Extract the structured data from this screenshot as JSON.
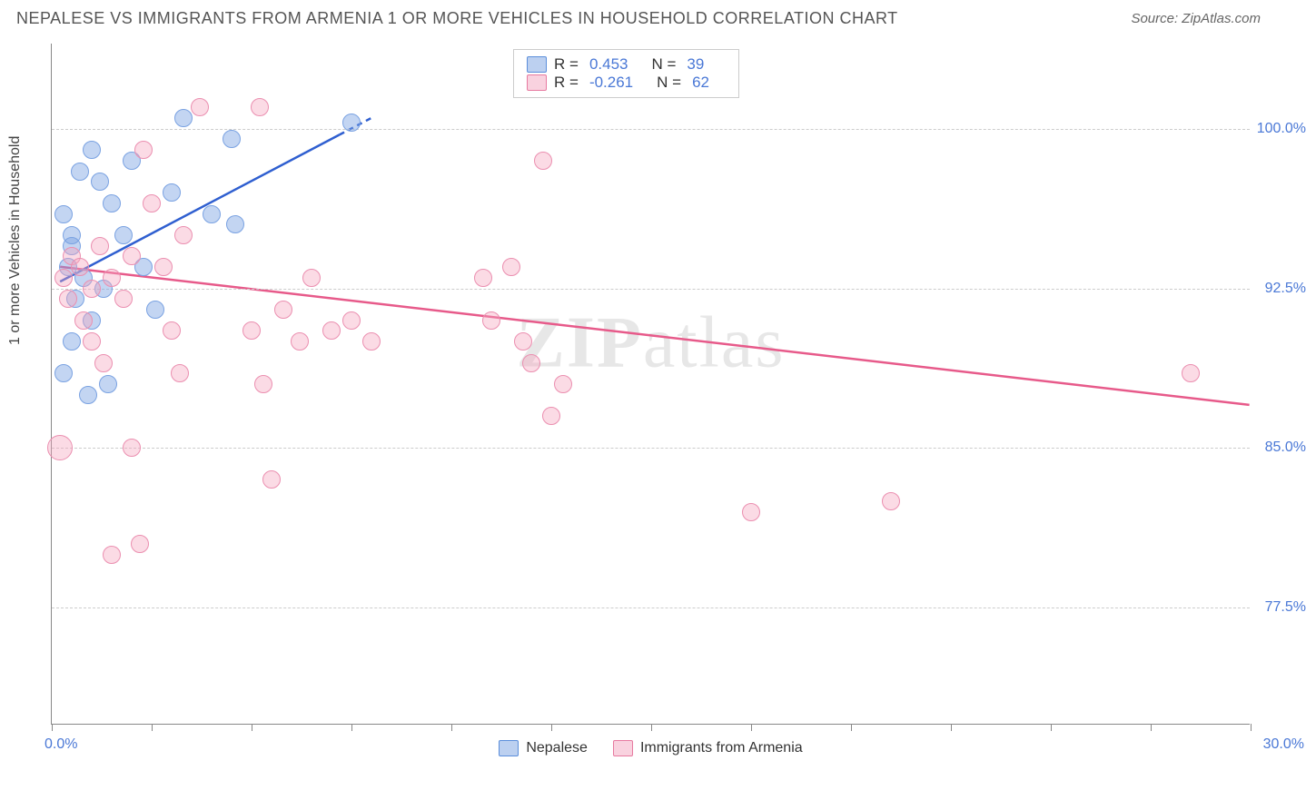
{
  "title": "NEPALESE VS IMMIGRANTS FROM ARMENIA 1 OR MORE VEHICLES IN HOUSEHOLD CORRELATION CHART",
  "source": "Source: ZipAtlas.com",
  "watermark_bold": "ZIP",
  "watermark_light": "atlas",
  "ylabel": "1 or more Vehicles in Household",
  "chart": {
    "type": "scatter",
    "xlim": [
      0,
      30
    ],
    "ylim": [
      72,
      104
    ],
    "y_gridlines": [
      77.5,
      85.0,
      92.5,
      100.0
    ],
    "y_tick_labels": [
      "77.5%",
      "85.0%",
      "92.5%",
      "100.0%"
    ],
    "x_left_label": "0.0%",
    "x_right_label": "30.0%",
    "x_tick_positions": [
      0,
      2.5,
      5,
      7.5,
      10,
      12.5,
      15,
      17.5,
      20,
      22.5,
      25,
      27.5,
      30
    ],
    "grid_color": "#cccccc",
    "axis_color": "#888888",
    "tick_label_color": "#4a78d6",
    "background_color": "#ffffff",
    "point_radius": 10,
    "series": [
      {
        "name": "Nepalese",
        "color_fill": "rgba(122,162,226,0.45)",
        "color_stroke": "#7aa2e2",
        "legend_label": "Nepalese",
        "correlation": {
          "R": "0.453",
          "N": "39"
        },
        "trend": {
          "x1": 0.2,
          "y1": 92.8,
          "x2": 8.0,
          "y2": 100.5,
          "dash_from_x": 7.2,
          "stroke": "#2f5fd0",
          "width": 2.5
        },
        "points": [
          {
            "x": 0.3,
            "y": 96.0
          },
          {
            "x": 0.5,
            "y": 95.0
          },
          {
            "x": 0.7,
            "y": 98.0
          },
          {
            "x": 0.5,
            "y": 94.5
          },
          {
            "x": 1.0,
            "y": 99.0
          },
          {
            "x": 1.2,
            "y": 97.5
          },
          {
            "x": 1.5,
            "y": 96.5
          },
          {
            "x": 0.4,
            "y": 93.5
          },
          {
            "x": 0.6,
            "y": 92.0
          },
          {
            "x": 0.8,
            "y": 93.0
          },
          {
            "x": 1.0,
            "y": 91.0
          },
          {
            "x": 1.3,
            "y": 92.5
          },
          {
            "x": 0.5,
            "y": 90.0
          },
          {
            "x": 0.3,
            "y": 88.5
          },
          {
            "x": 1.8,
            "y": 95.0
          },
          {
            "x": 2.0,
            "y": 98.5
          },
          {
            "x": 2.3,
            "y": 93.5
          },
          {
            "x": 2.6,
            "y": 91.5
          },
          {
            "x": 3.0,
            "y": 97.0
          },
          {
            "x": 3.3,
            "y": 100.5
          },
          {
            "x": 4.0,
            "y": 96.0
          },
          {
            "x": 4.5,
            "y": 99.5
          },
          {
            "x": 4.6,
            "y": 95.5
          },
          {
            "x": 0.9,
            "y": 87.5
          },
          {
            "x": 1.4,
            "y": 88.0
          },
          {
            "x": 7.5,
            "y": 100.3
          }
        ]
      },
      {
        "name": "Immigrants from Armenia",
        "color_fill": "rgba(244,166,191,0.4)",
        "color_stroke": "#eb8fb0",
        "legend_label": "Immigrants from Armenia",
        "correlation": {
          "R": "-0.261",
          "N": "62"
        },
        "trend": {
          "x1": 0.2,
          "y1": 93.5,
          "x2": 30.0,
          "y2": 87.0,
          "stroke": "#e75a8a",
          "width": 2.5
        },
        "points": [
          {
            "x": 0.2,
            "y": 85.0,
            "r": 14
          },
          {
            "x": 0.3,
            "y": 93.0
          },
          {
            "x": 0.5,
            "y": 94.0
          },
          {
            "x": 0.4,
            "y": 92.0
          },
          {
            "x": 0.7,
            "y": 93.5
          },
          {
            "x": 0.8,
            "y": 91.0
          },
          {
            "x": 1.0,
            "y": 92.5
          },
          {
            "x": 1.2,
            "y": 94.5
          },
          {
            "x": 1.0,
            "y": 90.0
          },
          {
            "x": 1.3,
            "y": 89.0
          },
          {
            "x": 1.5,
            "y": 93.0
          },
          {
            "x": 1.8,
            "y": 92.0
          },
          {
            "x": 2.0,
            "y": 94.0
          },
          {
            "x": 2.3,
            "y": 99.0
          },
          {
            "x": 2.5,
            "y": 96.5
          },
          {
            "x": 2.8,
            "y": 93.5
          },
          {
            "x": 3.0,
            "y": 90.5
          },
          {
            "x": 3.3,
            "y": 95.0
          },
          {
            "x": 3.7,
            "y": 101.0
          },
          {
            "x": 3.2,
            "y": 88.5
          },
          {
            "x": 2.0,
            "y": 85.0
          },
          {
            "x": 5.2,
            "y": 101.0
          },
          {
            "x": 5.0,
            "y": 90.5
          },
          {
            "x": 5.3,
            "y": 88.0
          },
          {
            "x": 5.5,
            "y": 83.5
          },
          {
            "x": 5.8,
            "y": 91.5
          },
          {
            "x": 6.2,
            "y": 90.0
          },
          {
            "x": 6.5,
            "y": 93.0
          },
          {
            "x": 7.0,
            "y": 90.5
          },
          {
            "x": 7.5,
            "y": 91.0
          },
          {
            "x": 8.0,
            "y": 90.0
          },
          {
            "x": 1.5,
            "y": 80.0
          },
          {
            "x": 2.2,
            "y": 80.5
          },
          {
            "x": 10.8,
            "y": 93.0
          },
          {
            "x": 11.0,
            "y": 91.0
          },
          {
            "x": 11.5,
            "y": 93.5
          },
          {
            "x": 11.8,
            "y": 90.0
          },
          {
            "x": 12.0,
            "y": 89.0
          },
          {
            "x": 12.3,
            "y": 98.5
          },
          {
            "x": 12.5,
            "y": 86.5
          },
          {
            "x": 12.8,
            "y": 88.0
          },
          {
            "x": 17.5,
            "y": 82.0
          },
          {
            "x": 21.0,
            "y": 82.5
          },
          {
            "x": 28.5,
            "y": 88.5
          }
        ]
      }
    ]
  },
  "correlation_legend": {
    "R_label": "R =",
    "N_label": "N ="
  },
  "bottom_legend": [
    {
      "swatch": "blue",
      "label": "Nepalese"
    },
    {
      "swatch": "pink",
      "label": "Immigrants from Armenia"
    }
  ]
}
